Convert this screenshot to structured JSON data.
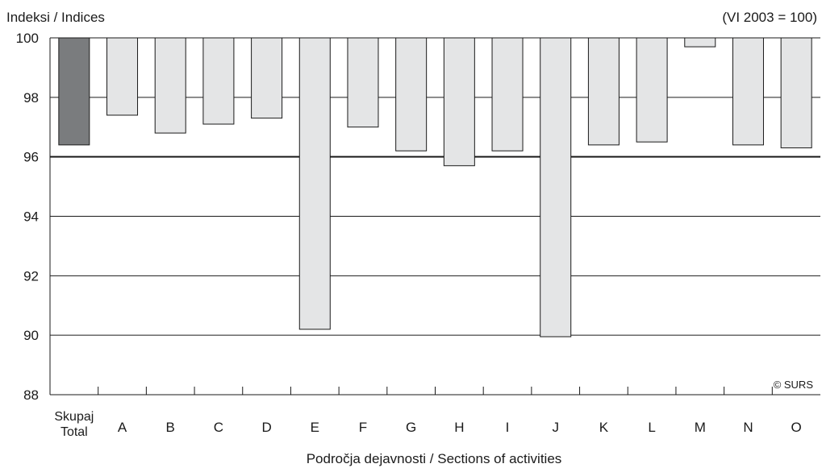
{
  "chart_data": {
    "type": "bar",
    "ylabel": "Indeksi / Indices",
    "base_note": "(VI 2003 = 100)",
    "xlabel": "Področja dejavnosti / Sections of activities",
    "credit": "© SURS",
    "ylim": [
      88,
      100
    ],
    "yticks": [
      88,
      90,
      92,
      94,
      96,
      98,
      100
    ],
    "reference_line": 96,
    "bars_hang_from": 100,
    "categories": [
      {
        "label": "Skupaj",
        "label2": "Total"
      },
      {
        "label": "A"
      },
      {
        "label": "B"
      },
      {
        "label": "C"
      },
      {
        "label": "D"
      },
      {
        "label": "E"
      },
      {
        "label": "F"
      },
      {
        "label": "G"
      },
      {
        "label": "H"
      },
      {
        "label": "I"
      },
      {
        "label": "J"
      },
      {
        "label": "K"
      },
      {
        "label": "L"
      },
      {
        "label": "M"
      },
      {
        "label": "N"
      },
      {
        "label": "O"
      }
    ],
    "values": [
      96.4,
      97.4,
      96.8,
      97.1,
      97.3,
      90.2,
      97.0,
      96.2,
      95.7,
      96.2,
      89.95,
      96.4,
      96.5,
      99.7,
      96.4,
      96.3
    ],
    "colors": {
      "total_bar": "#7a7c7e",
      "bar": "#e4e5e6",
      "bar_stroke": "#1a1a1a",
      "grid": "#1a1a1a"
    }
  }
}
